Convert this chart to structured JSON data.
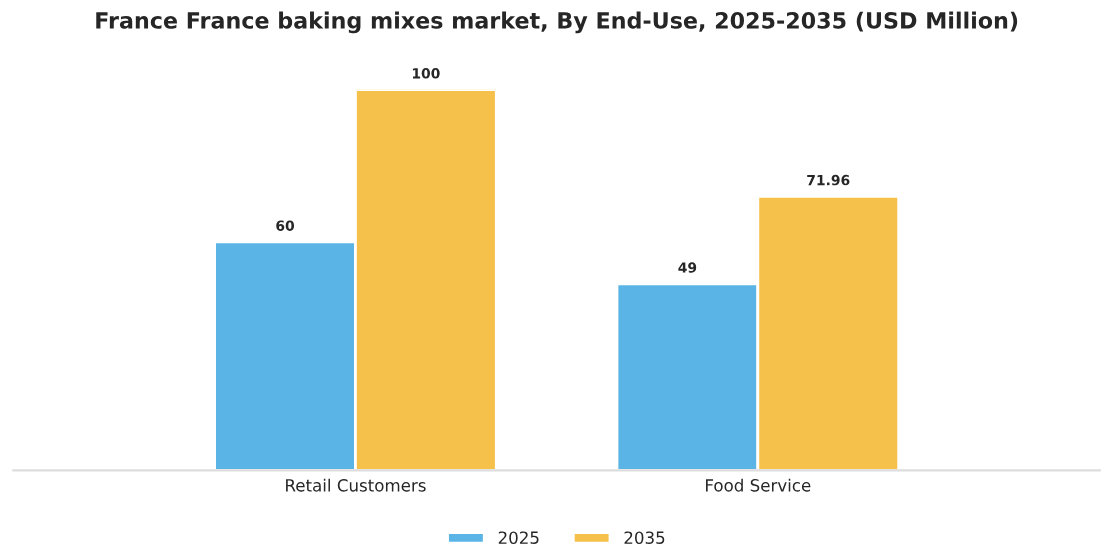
{
  "chart_data": {
    "type": "bar",
    "title": "France France baking mixes market, By End-Use, 2025-2035 (USD Million)",
    "categories": [
      "Retail Customers",
      "Food Service"
    ],
    "series": [
      {
        "name": "2025",
        "color": "#5ab4e6",
        "values": [
          60,
          49
        ]
      },
      {
        "name": "2035",
        "color": "#f6c14b",
        "values": [
          100,
          71.96
        ]
      }
    ],
    "data_labels": true,
    "legend": "bottom",
    "grid": false
  }
}
